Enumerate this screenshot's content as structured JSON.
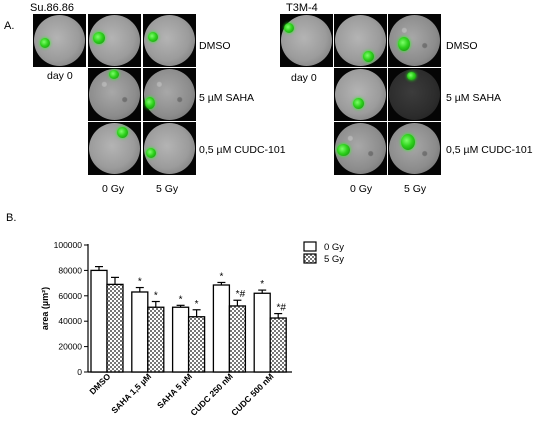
{
  "panel_a": {
    "label": "A.",
    "left": {
      "cell_line": "Su.86.86",
      "day_label": "day 0",
      "rows": [
        "DMSO",
        "5 µM SAHA",
        "0,5 µM CUDC-101"
      ],
      "cols": [
        "0 Gy",
        "5 Gy"
      ]
    },
    "right": {
      "cell_line": "T3M-4",
      "day_label": "day 0",
      "rows": [
        "DMSO",
        "5 µM SAHA",
        "0,5 µM CUDC-101"
      ],
      "cols": [
        "0 Gy",
        "5 Gy"
      ]
    }
  },
  "panel_b": {
    "label": "B."
  },
  "chart_data": {
    "type": "bar",
    "categories": [
      "DMSO",
      "SAHA 1,5 µM",
      "SAHA 5 µM",
      "CUDC 250 nM",
      "CUDC 500 nM"
    ],
    "series": [
      {
        "name": "0 Gy",
        "values": [
          80000,
          63000,
          51000,
          68500,
          62000
        ],
        "errors": [
          3000,
          3500,
          1500,
          2000,
          2500
        ],
        "annotations": [
          "",
          "*",
          "*",
          "*",
          "*"
        ],
        "color": "#ffffff"
      },
      {
        "name": "5 Gy",
        "values": [
          69000,
          51000,
          43500,
          52000,
          42500
        ],
        "errors": [
          5500,
          4500,
          5500,
          4500,
          3500
        ],
        "annotations": [
          "",
          "*",
          "*",
          "*#",
          "*#"
        ],
        "color": "#cfcfcf"
      }
    ],
    "ylabel": "area (µm²)",
    "ylim": [
      0,
      100000
    ],
    "yticks": [
      "0",
      "20000",
      "40000",
      "60000",
      "80000",
      "100000"
    ],
    "legend_position": "top-right",
    "grid": false
  }
}
